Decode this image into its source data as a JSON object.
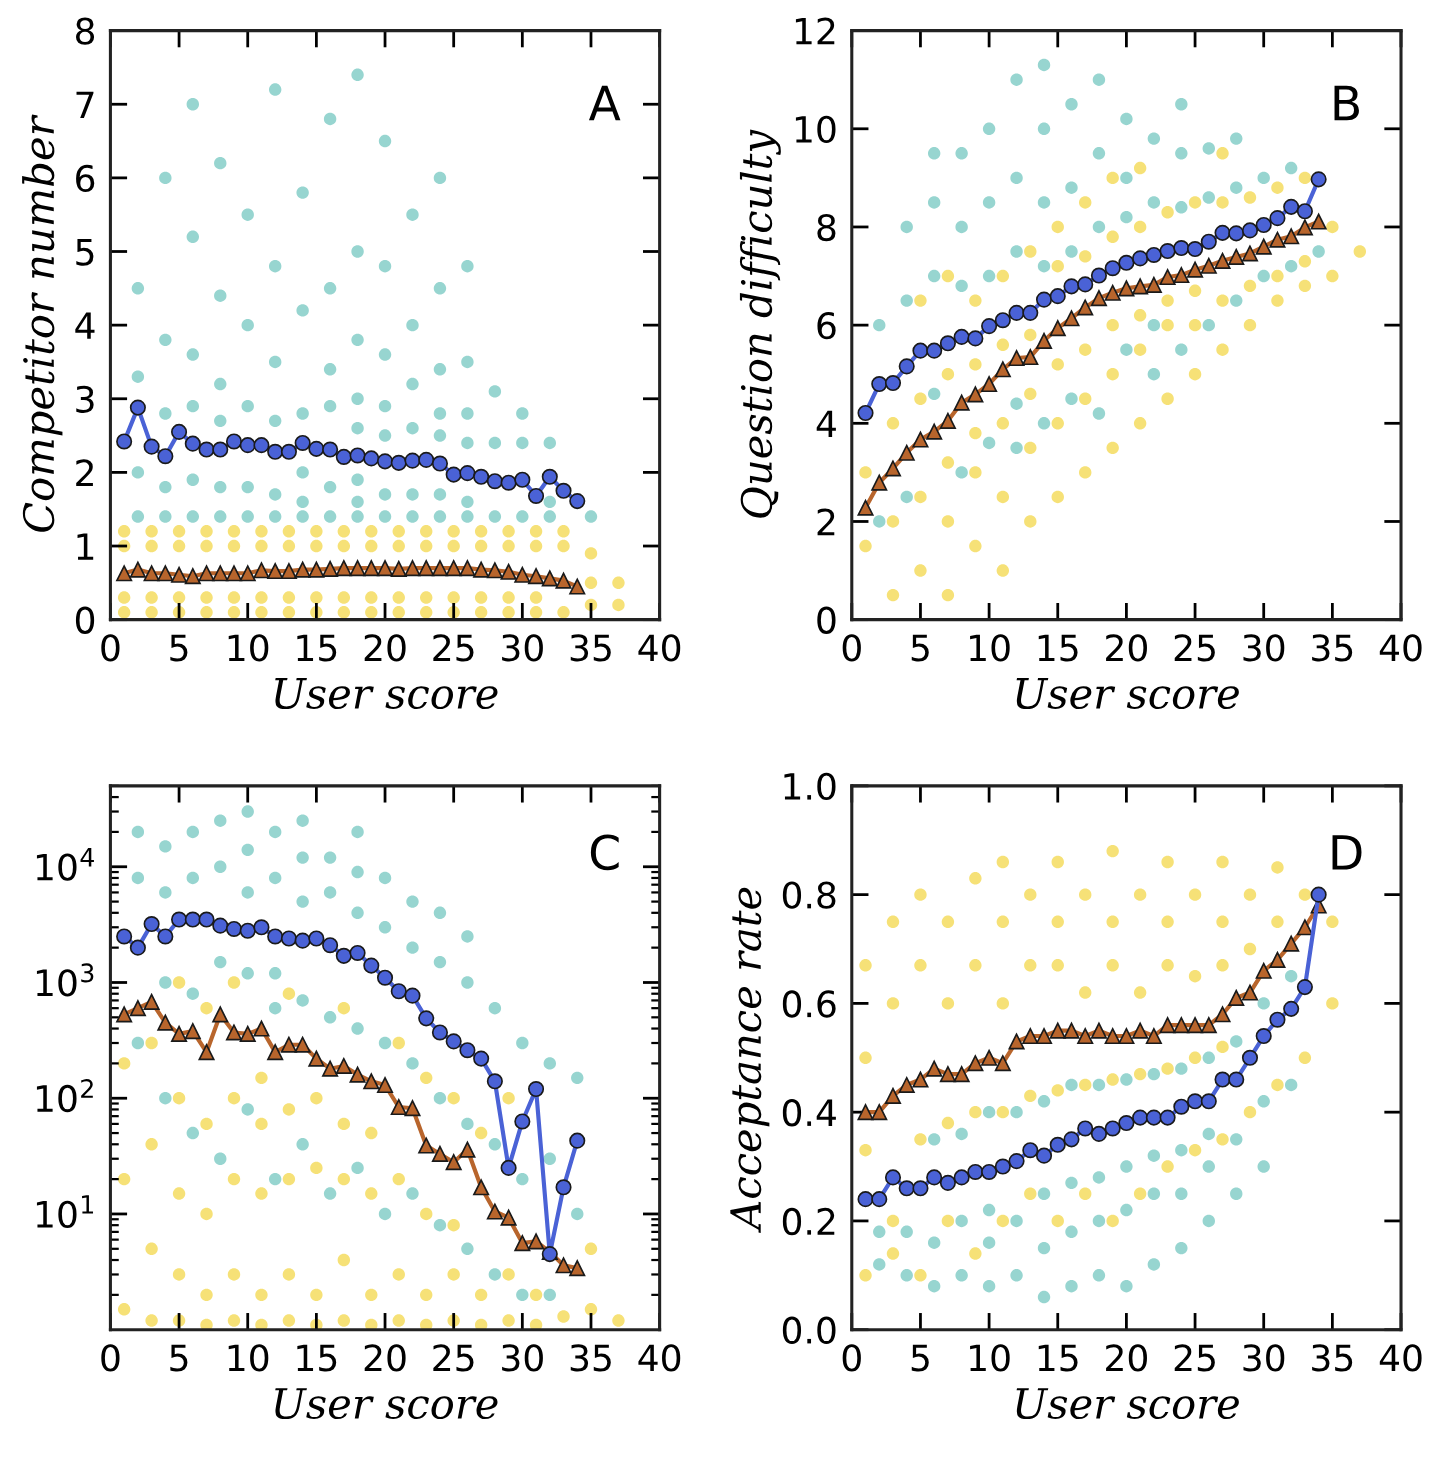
{
  "chart_data": [
    {
      "type": "scatter",
      "annotations": [
        "A"
      ],
      "xlabel": "User score",
      "ylabel": "Competitor number",
      "xlim": [
        0,
        40
      ],
      "ylim": [
        0,
        8
      ],
      "xticks": [
        0,
        5,
        10,
        15,
        20,
        25,
        30,
        35,
        40
      ],
      "yticks": [
        0,
        1,
        2,
        3,
        4,
        5,
        6,
        7,
        8
      ],
      "series": [
        {
          "marker": "circle",
          "color": "#52b9b0",
          "x": [
            2,
            2,
            2,
            2,
            4,
            4,
            4,
            4,
            4,
            6,
            6,
            6,
            6,
            6,
            6,
            8,
            8,
            8,
            8,
            8,
            8,
            10,
            10,
            10,
            10,
            10,
            12,
            12,
            12,
            12,
            12,
            12,
            14,
            14,
            14,
            14,
            14,
            14,
            16,
            16,
            16,
            16,
            16,
            16,
            18,
            18,
            18,
            18,
            18,
            18,
            18,
            18,
            20,
            20,
            20,
            20,
            20,
            20,
            20,
            22,
            22,
            22,
            22,
            22,
            22,
            24,
            24,
            24,
            24,
            24,
            24,
            24,
            26,
            26,
            26,
            26,
            26,
            26,
            28,
            28,
            28,
            30,
            30,
            30,
            32,
            32,
            32,
            35
          ],
          "values": [
            1.4,
            2.0,
            3.3,
            4.5,
            1.4,
            1.8,
            2.8,
            3.8,
            6.0,
            1.4,
            1.9,
            2.9,
            3.6,
            5.2,
            7.0,
            1.4,
            1.8,
            2.7,
            3.2,
            4.4,
            6.2,
            1.4,
            1.8,
            2.9,
            4.0,
            5.5,
            1.4,
            1.7,
            2.7,
            3.5,
            4.8,
            7.2,
            1.4,
            1.6,
            2.0,
            2.8,
            4.2,
            5.8,
            1.4,
            1.8,
            2.9,
            3.4,
            4.5,
            6.8,
            1.4,
            1.6,
            1.9,
            2.6,
            3.0,
            3.8,
            5.0,
            7.4,
            1.4,
            1.7,
            2.5,
            2.9,
            3.6,
            4.8,
            6.5,
            1.4,
            1.7,
            2.6,
            3.2,
            4.0,
            5.5,
            1.4,
            1.7,
            2.5,
            2.8,
            3.4,
            4.5,
            6.0,
            1.4,
            1.6,
            2.4,
            2.8,
            3.5,
            4.8,
            1.4,
            2.4,
            3.1,
            1.4,
            2.4,
            2.8,
            1.4,
            1.6,
            2.4,
            1.4
          ]
        },
        {
          "marker": "circle",
          "color": "#f0cd1c",
          "x": [
            1,
            1,
            1,
            1,
            3,
            3,
            3,
            3,
            5,
            5,
            5,
            5,
            7,
            7,
            7,
            7,
            9,
            9,
            9,
            9,
            11,
            11,
            11,
            11,
            13,
            13,
            13,
            13,
            15,
            15,
            15,
            15,
            17,
            17,
            17,
            17,
            19,
            19,
            19,
            19,
            21,
            21,
            21,
            21,
            23,
            23,
            23,
            23,
            25,
            25,
            25,
            25,
            27,
            27,
            27,
            27,
            29,
            29,
            29,
            29,
            31,
            31,
            31,
            31,
            33,
            33,
            33,
            35,
            35,
            35,
            37,
            37
          ],
          "values": [
            0.1,
            0.3,
            1.0,
            1.2,
            0.1,
            0.3,
            1.0,
            1.2,
            0.1,
            0.3,
            1.0,
            1.2,
            0.1,
            0.3,
            1.0,
            1.2,
            0.1,
            0.3,
            1.0,
            1.2,
            0.1,
            0.3,
            1.0,
            1.2,
            0.1,
            0.3,
            1.0,
            1.2,
            0.1,
            0.3,
            1.0,
            1.2,
            0.1,
            0.3,
            1.0,
            1.2,
            0.1,
            0.3,
            1.0,
            1.2,
            0.1,
            0.3,
            1.0,
            1.2,
            0.1,
            0.3,
            1.0,
            1.2,
            0.1,
            0.3,
            1.0,
            1.2,
            0.1,
            0.3,
            1.0,
            1.2,
            0.1,
            0.3,
            1.0,
            1.2,
            0.1,
            0.3,
            1.0,
            1.2,
            0.1,
            1.0,
            1.2,
            0.2,
            0.5,
            0.9,
            0.2,
            0.5
          ]
        },
        {
          "type": "line",
          "marker": "triangle",
          "color": "#b8652c",
          "x": [
            1,
            2,
            3,
            4,
            5,
            6,
            7,
            8,
            9,
            10,
            11,
            12,
            13,
            14,
            15,
            16,
            17,
            18,
            19,
            20,
            21,
            22,
            23,
            24,
            25,
            26,
            27,
            28,
            29,
            30,
            31,
            32,
            33,
            34
          ],
          "values": [
            0.63,
            0.68,
            0.63,
            0.63,
            0.61,
            0.59,
            0.63,
            0.63,
            0.63,
            0.63,
            0.67,
            0.66,
            0.66,
            0.68,
            0.68,
            0.69,
            0.7,
            0.7,
            0.7,
            0.7,
            0.69,
            0.7,
            0.7,
            0.7,
            0.7,
            0.7,
            0.68,
            0.67,
            0.65,
            0.61,
            0.59,
            0.56,
            0.53,
            0.45
          ]
        },
        {
          "type": "line",
          "marker": "circle",
          "color": "#4a62d6",
          "x": [
            1,
            2,
            3,
            4,
            5,
            6,
            7,
            8,
            9,
            10,
            11,
            12,
            13,
            14,
            15,
            16,
            17,
            18,
            19,
            20,
            21,
            22,
            23,
            24,
            25,
            26,
            27,
            28,
            29,
            30,
            31,
            32,
            33,
            34
          ],
          "values": [
            2.42,
            2.88,
            2.35,
            2.22,
            2.55,
            2.39,
            2.31,
            2.31,
            2.42,
            2.37,
            2.37,
            2.28,
            2.28,
            2.4,
            2.32,
            2.31,
            2.21,
            2.23,
            2.19,
            2.15,
            2.13,
            2.16,
            2.17,
            2.12,
            1.97,
            1.99,
            1.94,
            1.88,
            1.86,
            1.9,
            1.68,
            1.94,
            1.75,
            1.61
          ]
        }
      ]
    },
    {
      "type": "scatter",
      "annotations": [
        "B"
      ],
      "xlabel": "User score",
      "ylabel": "Question difficulty",
      "xlim": [
        0,
        40
      ],
      "ylim": [
        0,
        12
      ],
      "xticks": [
        0,
        5,
        10,
        15,
        20,
        25,
        30,
        35,
        40
      ],
      "yticks": [
        0,
        2,
        4,
        6,
        8,
        10,
        12
      ],
      "series": [
        {
          "marker": "circle",
          "color": "#52b9b0",
          "x": [
            2,
            2,
            4,
            4,
            4,
            6,
            6,
            6,
            6,
            8,
            8,
            8,
            8,
            10,
            10,
            10,
            10,
            12,
            12,
            12,
            12,
            12,
            14,
            14,
            14,
            14,
            14,
            16,
            16,
            16,
            16,
            18,
            18,
            18,
            18,
            20,
            20,
            20,
            20,
            22,
            22,
            22,
            22,
            24,
            24,
            24,
            24,
            26,
            26,
            26,
            28,
            28,
            28,
            30,
            30,
            32,
            32,
            34
          ],
          "values": [
            2.0,
            6.0,
            2.5,
            6.5,
            8.0,
            4.6,
            7.0,
            8.5,
            9.5,
            3.0,
            6.8,
            8.0,
            9.5,
            3.6,
            7.0,
            8.5,
            10.0,
            3.5,
            4.4,
            7.5,
            9.0,
            11.0,
            4.0,
            7.2,
            8.5,
            10.0,
            11.3,
            4.5,
            7.5,
            8.8,
            10.5,
            4.2,
            8.0,
            9.5,
            11.0,
            5.5,
            8.2,
            9.0,
            10.2,
            5.0,
            6.0,
            8.5,
            9.8,
            5.5,
            8.4,
            9.5,
            10.5,
            6.0,
            8.6,
            9.6,
            6.5,
            8.8,
            9.8,
            7.0,
            9.0,
            7.2,
            9.2,
            7.5
          ]
        },
        {
          "marker": "circle",
          "color": "#f0cd1c",
          "x": [
            1,
            1,
            3,
            3,
            3,
            5,
            5,
            5,
            5,
            7,
            7,
            7,
            7,
            7,
            9,
            9,
            9,
            9,
            9,
            11,
            11,
            11,
            11,
            11,
            13,
            13,
            13,
            13,
            13,
            15,
            15,
            15,
            15,
            15,
            17,
            17,
            17,
            17,
            17,
            19,
            19,
            19,
            19,
            19,
            21,
            21,
            21,
            21,
            21,
            23,
            23,
            23,
            23,
            25,
            25,
            25,
            25,
            27,
            27,
            27,
            27,
            29,
            29,
            29,
            31,
            31,
            31,
            33,
            33,
            33,
            35,
            35,
            37
          ],
          "values": [
            1.5,
            3.0,
            0.5,
            2.0,
            4.0,
            1.0,
            2.5,
            4.5,
            6.5,
            0.5,
            2.0,
            3.2,
            5.0,
            7.0,
            1.5,
            3.0,
            3.8,
            5.2,
            6.5,
            1.0,
            2.5,
            4.0,
            5.6,
            7.0,
            2.0,
            3.5,
            4.6,
            5.8,
            7.5,
            2.5,
            4.0,
            5.2,
            7.2,
            8.0,
            3.0,
            4.5,
            5.5,
            7.4,
            8.5,
            3.5,
            5.0,
            6.0,
            7.8,
            9.0,
            4.0,
            5.5,
            6.2,
            8.0,
            9.2,
            4.5,
            6.0,
            6.5,
            8.3,
            5.0,
            6.0,
            6.7,
            8.5,
            5.5,
            6.5,
            8.5,
            9.5,
            6.0,
            6.8,
            8.6,
            6.5,
            7.0,
            8.8,
            6.8,
            7.3,
            9.0,
            7.0,
            8.0,
            7.5
          ]
        },
        {
          "type": "line",
          "marker": "triangle",
          "color": "#b8652c",
          "x": [
            1,
            2,
            3,
            4,
            5,
            6,
            7,
            8,
            9,
            10,
            11,
            12,
            13,
            14,
            15,
            16,
            17,
            18,
            19,
            20,
            21,
            22,
            23,
            24,
            25,
            26,
            27,
            28,
            29,
            30,
            31,
            32,
            33,
            34
          ],
          "values": [
            2.28,
            2.79,
            3.08,
            3.4,
            3.67,
            3.83,
            4.05,
            4.42,
            4.59,
            4.8,
            5.1,
            5.33,
            5.35,
            5.68,
            5.94,
            6.14,
            6.36,
            6.55,
            6.66,
            6.75,
            6.79,
            6.82,
            6.98,
            7.02,
            7.13,
            7.21,
            7.31,
            7.39,
            7.46,
            7.6,
            7.74,
            7.81,
            7.99,
            8.11
          ]
        },
        {
          "type": "line",
          "marker": "circle",
          "color": "#4a62d6",
          "x": [
            1,
            2,
            3,
            4,
            5,
            6,
            7,
            8,
            9,
            10,
            11,
            12,
            13,
            14,
            15,
            16,
            17,
            18,
            19,
            20,
            21,
            22,
            23,
            24,
            25,
            26,
            27,
            28,
            29,
            30,
            31,
            32,
            33,
            34
          ],
          "values": [
            4.21,
            4.8,
            4.82,
            5.16,
            5.48,
            5.48,
            5.63,
            5.76,
            5.73,
            5.98,
            6.1,
            6.25,
            6.25,
            6.52,
            6.59,
            6.79,
            6.83,
            7.01,
            7.16,
            7.27,
            7.36,
            7.43,
            7.51,
            7.57,
            7.55,
            7.7,
            7.88,
            7.87,
            7.93,
            8.04,
            8.18,
            8.41,
            8.32,
            8.97
          ]
        }
      ]
    },
    {
      "type": "scatter",
      "annotations": [
        "C"
      ],
      "xlabel": "User score",
      "log": "y",
      "xlim": [
        0,
        40
      ],
      "ylim": [
        1,
        50000
      ],
      "xticks": [
        0,
        5,
        10,
        15,
        20,
        25,
        30,
        35,
        40
      ],
      "yticks": [
        {
          "value": 10,
          "label": "10$^{1}$"
        },
        {
          "value": 100,
          "label": "10$^{2}$"
        },
        {
          "value": 1000,
          "label": "10$^{3}$"
        },
        {
          "value": 10000,
          "label": "10$^{4}$"
        }
      ],
      "series": [
        {
          "marker": "circle",
          "color": "#52b9b0",
          "x": [
            2,
            2,
            2,
            4,
            4,
            4,
            4,
            6,
            6,
            6,
            6,
            8,
            8,
            8,
            8,
            10,
            10,
            10,
            10,
            10,
            12,
            12,
            12,
            12,
            12,
            14,
            14,
            14,
            14,
            14,
            16,
            16,
            16,
            16,
            18,
            18,
            18,
            18,
            18,
            20,
            20,
            20,
            20,
            22,
            22,
            22,
            22,
            24,
            24,
            24,
            24,
            26,
            26,
            26,
            26,
            28,
            28,
            28,
            30,
            30,
            30,
            32,
            32,
            32,
            34,
            34
          ],
          "values": [
            300,
            8000,
            20000,
            100,
            1000,
            6000,
            15000,
            50,
            800,
            8000,
            20000,
            30,
            1500,
            10000,
            25000,
            80,
            1200,
            6000,
            14000,
            30000,
            20,
            600,
            1200,
            8000,
            20000,
            40,
            700,
            5000,
            12000,
            25000,
            15,
            500,
            6000,
            12000,
            25,
            400,
            4000,
            9000,
            20000,
            10,
            300,
            3000,
            8000,
            15,
            200,
            2000,
            5000,
            8,
            100,
            1500,
            4000,
            5,
            60,
            1000,
            2500,
            3,
            40,
            600,
            2,
            20,
            300,
            2,
            30,
            200,
            10,
            150
          ]
        },
        {
          "marker": "circle",
          "color": "#f0cd1c",
          "x": [
            1,
            1,
            1,
            3,
            3,
            3,
            3,
            5,
            5,
            5,
            5,
            5,
            7,
            7,
            7,
            7,
            7,
            9,
            9,
            9,
            9,
            9,
            11,
            11,
            11,
            11,
            11,
            13,
            13,
            13,
            13,
            13,
            15,
            15,
            15,
            15,
            17,
            17,
            17,
            17,
            17,
            19,
            19,
            19,
            19,
            21,
            21,
            21,
            21,
            23,
            23,
            23,
            23,
            25,
            25,
            25,
            25,
            27,
            27,
            27,
            29,
            29,
            29,
            31,
            31,
            33,
            35,
            35,
            37
          ],
          "values": [
            1.5,
            20,
            200,
            1.2,
            5,
            40,
            300,
            1.2,
            3,
            15,
            100,
            1000,
            1.1,
            2,
            10,
            60,
            600,
            1.2,
            3,
            20,
            100,
            1000,
            1.1,
            2,
            15,
            60,
            150,
            1.2,
            3,
            20,
            80,
            800,
            1.1,
            2,
            25,
            100,
            1.2,
            4,
            20,
            60,
            600,
            1.1,
            2,
            15,
            50,
            1.2,
            3,
            20,
            300,
            1.1,
            2,
            10,
            150,
            1.2,
            3,
            8,
            100,
            1.1,
            2,
            50,
            1.2,
            3,
            100,
            1.1,
            2,
            1.3,
            1.5,
            5,
            1.2
          ]
        },
        {
          "type": "line",
          "marker": "triangle",
          "color": "#b8652c",
          "x": [
            1,
            2,
            3,
            4,
            5,
            6,
            7,
            8,
            9,
            10,
            11,
            12,
            13,
            14,
            15,
            16,
            17,
            18,
            19,
            20,
            21,
            22,
            23,
            24,
            25,
            26,
            27,
            28,
            29,
            30,
            31,
            32,
            33,
            34
          ],
          "values": [
            530,
            600,
            680,
            450,
            360,
            380,
            250,
            530,
            370,
            360,
            400,
            250,
            290,
            290,
            220,
            180,
            190,
            160,
            140,
            130,
            84,
            82,
            39,
            33,
            28,
            36,
            17,
            10.5,
            9.3,
            5.6,
            5.8,
            4.7,
            3.6,
            3.4
          ]
        },
        {
          "type": "line",
          "marker": "circle",
          "color": "#4a62d6",
          "x": [
            1,
            2,
            3,
            4,
            5,
            6,
            7,
            8,
            9,
            10,
            11,
            12,
            13,
            14,
            15,
            16,
            17,
            18,
            19,
            20,
            21,
            22,
            23,
            24,
            25,
            26,
            27,
            28,
            29,
            30,
            31,
            32,
            33,
            34
          ],
          "values": [
            2500,
            2000,
            3200,
            2500,
            3500,
            3500,
            3500,
            3100,
            2900,
            2800,
            3000,
            2500,
            2400,
            2300,
            2400,
            2100,
            1700,
            1800,
            1400,
            1100,
            840,
            770,
            490,
            370,
            310,
            260,
            220,
            140,
            25,
            63,
            120,
            4.5,
            17,
            43
          ]
        }
      ]
    },
    {
      "type": "scatter",
      "annotations": [
        "D"
      ],
      "xlabel": "User score",
      "ylabel": "Acceptance rate",
      "xlim": [
        0,
        40
      ],
      "ylim": [
        0,
        1
      ],
      "xticks": [
        0,
        5,
        10,
        15,
        20,
        25,
        30,
        35,
        40
      ],
      "yticks": [
        {
          "value": 0,
          "label": "0.0"
        },
        0.2,
        0.4,
        0.6,
        0.8,
        {
          "value": 1,
          "label": "1.0"
        }
      ],
      "series": [
        {
          "marker": "circle",
          "color": "#52b9b0",
          "x": [
            2,
            2,
            4,
            4,
            6,
            6,
            6,
            8,
            8,
            8,
            10,
            10,
            10,
            10,
            12,
            12,
            12,
            14,
            14,
            14,
            14,
            16,
            16,
            16,
            16,
            18,
            18,
            18,
            18,
            20,
            20,
            20,
            20,
            22,
            22,
            22,
            22,
            24,
            24,
            24,
            24,
            26,
            26,
            26,
            26,
            28,
            28,
            28,
            30,
            30,
            30,
            32,
            32
          ],
          "values": [
            0.12,
            0.18,
            0.1,
            0.18,
            0.08,
            0.16,
            0.35,
            0.1,
            0.2,
            0.36,
            0.08,
            0.16,
            0.22,
            0.4,
            0.1,
            0.2,
            0.4,
            0.06,
            0.15,
            0.25,
            0.42,
            0.08,
            0.18,
            0.27,
            0.45,
            0.1,
            0.2,
            0.28,
            0.45,
            0.08,
            0.22,
            0.3,
            0.46,
            0.12,
            0.25,
            0.32,
            0.47,
            0.15,
            0.25,
            0.33,
            0.48,
            0.2,
            0.3,
            0.36,
            0.5,
            0.25,
            0.35,
            0.53,
            0.3,
            0.42,
            0.6,
            0.45,
            0.65
          ]
        },
        {
          "marker": "circle",
          "color": "#f0cd1c",
          "x": [
            1,
            1,
            1,
            1,
            3,
            3,
            3,
            3,
            5,
            5,
            5,
            5,
            7,
            7,
            7,
            7,
            9,
            9,
            9,
            9,
            11,
            11,
            11,
            11,
            11,
            13,
            13,
            13,
            13,
            15,
            15,
            15,
            15,
            15,
            17,
            17,
            17,
            17,
            19,
            19,
            19,
            19,
            19,
            21,
            21,
            21,
            21,
            23,
            23,
            23,
            23,
            23,
            25,
            25,
            25,
            25,
            27,
            27,
            27,
            27,
            27,
            29,
            29,
            29,
            31,
            31,
            31,
            33,
            33,
            35,
            35
          ],
          "values": [
            0.1,
            0.33,
            0.5,
            0.67,
            0.14,
            0.2,
            0.6,
            0.75,
            0.1,
            0.35,
            0.67,
            0.8,
            0.2,
            0.38,
            0.6,
            0.75,
            0.14,
            0.4,
            0.67,
            0.83,
            0.2,
            0.4,
            0.6,
            0.75,
            0.86,
            0.25,
            0.43,
            0.67,
            0.8,
            0.2,
            0.44,
            0.67,
            0.75,
            0.86,
            0.25,
            0.45,
            0.62,
            0.8,
            0.2,
            0.46,
            0.67,
            0.75,
            0.88,
            0.25,
            0.47,
            0.62,
            0.8,
            0.3,
            0.48,
            0.67,
            0.75,
            0.86,
            0.33,
            0.5,
            0.65,
            0.8,
            0.35,
            0.52,
            0.67,
            0.75,
            0.86,
            0.4,
            0.7,
            0.8,
            0.45,
            0.75,
            0.85,
            0.5,
            0.8,
            0.6,
            0.75
          ]
        },
        {
          "type": "line",
          "marker": "triangle",
          "color": "#b8652c",
          "x": [
            1,
            2,
            3,
            4,
            5,
            6,
            7,
            8,
            9,
            10,
            11,
            12,
            13,
            14,
            15,
            16,
            17,
            18,
            19,
            20,
            21,
            22,
            23,
            24,
            25,
            26,
            27,
            28,
            29,
            30,
            31,
            32,
            33,
            34
          ],
          "values": [
            0.4,
            0.4,
            0.43,
            0.45,
            0.46,
            0.48,
            0.47,
            0.47,
            0.49,
            0.5,
            0.49,
            0.53,
            0.54,
            0.54,
            0.55,
            0.55,
            0.54,
            0.55,
            0.54,
            0.54,
            0.55,
            0.54,
            0.56,
            0.56,
            0.56,
            0.56,
            0.58,
            0.61,
            0.62,
            0.66,
            0.68,
            0.71,
            0.74,
            0.78
          ]
        },
        {
          "type": "line",
          "marker": "circle",
          "color": "#4a62d6",
          "x": [
            1,
            2,
            3,
            4,
            5,
            6,
            7,
            8,
            9,
            10,
            11,
            12,
            13,
            14,
            15,
            16,
            17,
            18,
            19,
            20,
            21,
            22,
            23,
            24,
            25,
            26,
            27,
            28,
            29,
            30,
            31,
            32,
            33,
            34
          ],
          "values": [
            0.24,
            0.24,
            0.28,
            0.26,
            0.26,
            0.28,
            0.27,
            0.28,
            0.29,
            0.29,
            0.3,
            0.31,
            0.33,
            0.32,
            0.34,
            0.35,
            0.37,
            0.36,
            0.37,
            0.38,
            0.39,
            0.39,
            0.39,
            0.41,
            0.42,
            0.42,
            0.46,
            0.46,
            0.5,
            0.54,
            0.57,
            0.59,
            0.63,
            0.8
          ]
        }
      ]
    }
  ]
}
